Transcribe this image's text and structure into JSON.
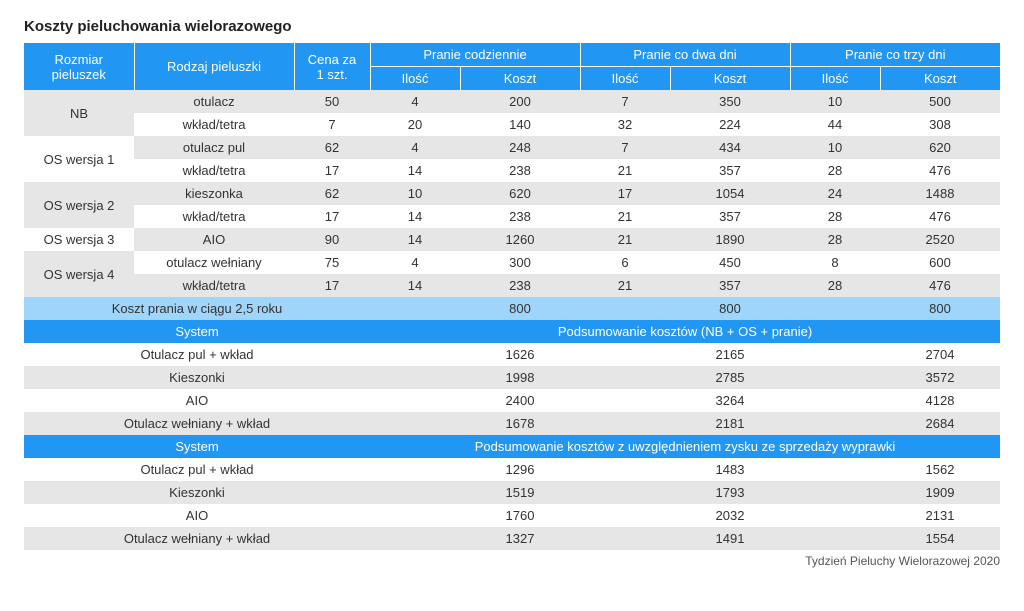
{
  "title": "Koszty pieluchowania wielorazowego",
  "footnote": "Tydzień Pieluchy Wielorazowej 2020",
  "colors": {
    "header_bg": "#2196f3",
    "header_fg": "#ffffff",
    "row_light": "#ffffff",
    "row_grey": "#e6e6e6",
    "row_blue_light": "#9fd4fb"
  },
  "header": {
    "col_size": "Rozmiar pieluszek",
    "col_type": "Rodzaj pieluszki",
    "col_price": "Cena za 1 szt.",
    "grp_daily": "Pranie codziennie",
    "grp_two": "Pranie co dwa dni",
    "grp_three": "Pranie co trzy dni",
    "sub_qty": "Ilość",
    "sub_cost": "Koszt"
  },
  "rows": [
    {
      "kind": "data",
      "shade": "grey",
      "size": "NB",
      "size_rowspan": 2,
      "type": "otulacz",
      "price": "50",
      "d_q": "4",
      "d_c": "200",
      "t_q": "7",
      "t_c": "350",
      "r_q": "10",
      "r_c": "500"
    },
    {
      "kind": "data",
      "shade": "light",
      "type": "wkład/tetra",
      "price": "7",
      "d_q": "20",
      "d_c": "140",
      "t_q": "32",
      "t_c": "224",
      "r_q": "44",
      "r_c": "308"
    },
    {
      "kind": "data",
      "shade": "grey",
      "size": "OS wersja 1",
      "size_rowspan": 2,
      "shade_size": "light",
      "type": "otulacz pul",
      "price": "62",
      "d_q": "4",
      "d_c": "248",
      "t_q": "7",
      "t_c": "434",
      "r_q": "10",
      "r_c": "620"
    },
    {
      "kind": "data",
      "shade": "light",
      "type": "wkład/tetra",
      "price": "17",
      "d_q": "14",
      "d_c": "238",
      "t_q": "21",
      "t_c": "357",
      "r_q": "28",
      "r_c": "476"
    },
    {
      "kind": "data",
      "shade": "grey",
      "size": "OS wersja 2",
      "size_rowspan": 2,
      "type": "kieszonka",
      "price": "62",
      "d_q": "10",
      "d_c": "620",
      "t_q": "17",
      "t_c": "1054",
      "r_q": "24",
      "r_c": "1488"
    },
    {
      "kind": "data",
      "shade": "light",
      "type": "wkład/tetra",
      "price": "17",
      "d_q": "14",
      "d_c": "238",
      "t_q": "21",
      "t_c": "357",
      "r_q": "28",
      "r_c": "476"
    },
    {
      "kind": "data",
      "shade": "grey",
      "size": "OS wersja 3",
      "size_rowspan": 1,
      "shade_size": "light",
      "type": "AIO",
      "price": "90",
      "d_q": "14",
      "d_c": "1260",
      "t_q": "21",
      "t_c": "1890",
      "r_q": "28",
      "r_c": "2520"
    },
    {
      "kind": "data",
      "shade": "light",
      "size": "OS wersja 4",
      "size_rowspan": 2,
      "shade_size": "grey",
      "type": "otulacz wełniany",
      "price": "75",
      "d_q": "4",
      "d_c": "300",
      "t_q": "6",
      "t_c": "450",
      "r_q": "8",
      "r_c": "600"
    },
    {
      "kind": "data",
      "shade": "grey",
      "type": "wkład/tetra",
      "price": "17",
      "d_q": "14",
      "d_c": "238",
      "t_q": "21",
      "t_c": "357",
      "r_q": "28",
      "r_c": "476"
    },
    {
      "kind": "wash",
      "label": "Koszt prania w ciągu 2,5 roku",
      "d": "800",
      "t": "800",
      "r": "800"
    },
    {
      "kind": "section",
      "system_label": "System",
      "summary_label": "Podsumowanie kosztów (NB + OS + pranie)"
    },
    {
      "kind": "summary",
      "shade": "light",
      "label": "Otulacz pul + wkład",
      "d": "1626",
      "t": "2165",
      "r": "2704"
    },
    {
      "kind": "summary",
      "shade": "grey",
      "label": "Kieszonki",
      "d": "1998",
      "t": "2785",
      "r": "3572"
    },
    {
      "kind": "summary",
      "shade": "light",
      "label": "AIO",
      "d": "2400",
      "t": "3264",
      "r": "4128"
    },
    {
      "kind": "summary",
      "shade": "grey",
      "label": "Otulacz wełniany + wkład",
      "d": "1678",
      "t": "2181",
      "r": "2684"
    },
    {
      "kind": "section",
      "system_label": "System",
      "summary_label": "Podsumowanie kosztów z uwzględnieniem zysku ze sprzedaży wyprawki"
    },
    {
      "kind": "summary",
      "shade": "light",
      "label": "Otulacz pul + wkład",
      "d": "1296",
      "t": "1483",
      "r": "1562"
    },
    {
      "kind": "summary",
      "shade": "grey",
      "label": "Kieszonki",
      "d": "1519",
      "t": "1793",
      "r": "1909"
    },
    {
      "kind": "summary",
      "shade": "light",
      "label": "AIO",
      "d": "1760",
      "t": "2032",
      "r": "2131"
    },
    {
      "kind": "summary",
      "shade": "grey",
      "label": "Otulacz wełniany + wkład",
      "d": "1327",
      "t": "1491",
      "r": "1554"
    }
  ]
}
